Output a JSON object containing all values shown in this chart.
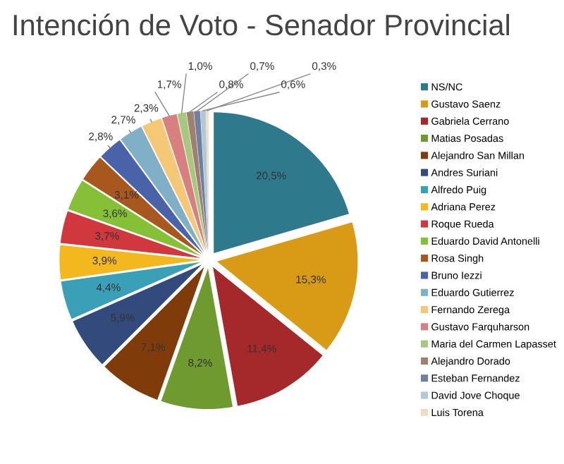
{
  "chart_data": {
    "type": "pie",
    "title": "Intención de Voto - Senador Provincial",
    "categories": [
      "NS/NC",
      "Gustavo Saenz",
      "Gabriela Cerrano",
      "Matias Posadas",
      "Alejandro San Millan",
      "Andres Suriani",
      "Alfredo Puig",
      "Adriana Perez",
      "Roque Rueda",
      "Eduardo David Antonelli",
      "Rosa Singh",
      "Bruno Iezzi",
      "Eduardo Gutierrez",
      "Fernando Zerega",
      "Gustavo Farquharson",
      "Maria del Carmen Lapasset",
      "Alejandro Dorado",
      "Esteban Fernandez",
      "David Jove Choque",
      "Luis Torena"
    ],
    "values": [
      20.5,
      15.3,
      11.4,
      8.2,
      7.1,
      5.9,
      4.4,
      3.9,
      3.7,
      3.6,
      3.1,
      2.8,
      2.7,
      2.3,
      1.7,
      1.0,
      0.8,
      0.7,
      0.6,
      0.3
    ],
    "value_labels": [
      "20,5%",
      "15,3%",
      "11,4%",
      "8,2%",
      "7,1%",
      "5,9%",
      "4,4%",
      "3,9%",
      "3,7%",
      "3,6%",
      "3,1%",
      "2,8%",
      "2,7%",
      "2,3%",
      "1,7%",
      "1,0%",
      "0,8%",
      "0,7%",
      "0,6%",
      "0,3%"
    ],
    "colors": [
      "#2e7a8c",
      "#d99a16",
      "#a5282a",
      "#6e9a30",
      "#7f3b0a",
      "#324a7c",
      "#3aa0b8",
      "#f2b81e",
      "#d0383e",
      "#86c036",
      "#a8581e",
      "#4a62a8",
      "#7fb0c8",
      "#f5c878",
      "#d88080",
      "#a8c880",
      "#a08070",
      "#7080a0",
      "#b0c8d8",
      "#f0dcc0"
    ],
    "legend": "right"
  }
}
